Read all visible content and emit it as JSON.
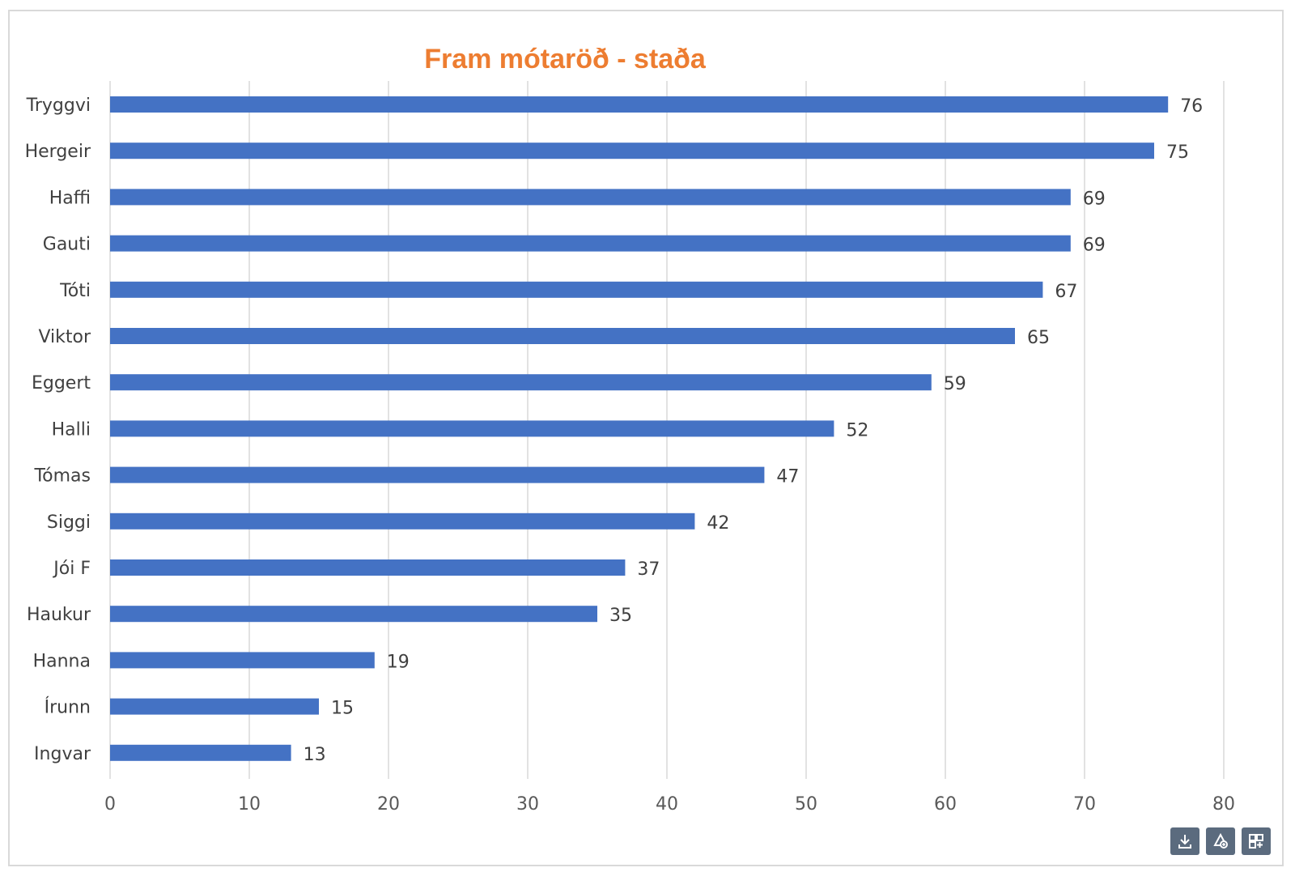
{
  "chart_data": {
    "type": "bar",
    "orientation": "horizontal",
    "title": "Fram mótaröð - staða",
    "title_color": "#ED7D31",
    "bar_color": "#4472C4",
    "categories": [
      "Tryggvi",
      "Hergeir",
      "Haffi",
      "Gauti",
      "Tóti",
      "Viktor",
      "Eggert",
      "Halli",
      "Tómas",
      "Siggi",
      "Jói F",
      "Haukur",
      "Hanna",
      "Írunn",
      "Ingvar"
    ],
    "values": [
      76,
      75,
      69,
      69,
      67,
      65,
      59,
      52,
      47,
      42,
      37,
      35,
      19,
      15,
      13
    ],
    "xlim": [
      0,
      80
    ],
    "x_ticks": [
      "0",
      "10",
      "20",
      "30",
      "40",
      "50",
      "60",
      "70",
      "80"
    ],
    "grid": "vertical",
    "data_labels": true,
    "legend": "none"
  },
  "toolbar": {
    "buttons": [
      {
        "icon": "download-icon"
      },
      {
        "icon": "recycle-icon"
      },
      {
        "icon": "expand-icon"
      }
    ]
  }
}
